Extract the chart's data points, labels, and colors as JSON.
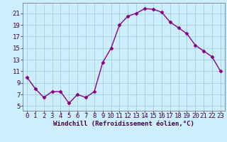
{
  "x": [
    0,
    1,
    2,
    3,
    4,
    5,
    6,
    7,
    8,
    9,
    10,
    11,
    12,
    13,
    14,
    15,
    16,
    17,
    18,
    19,
    20,
    21,
    22,
    23
  ],
  "y": [
    10.0,
    8.0,
    6.5,
    7.5,
    7.5,
    5.5,
    7.0,
    6.5,
    7.5,
    12.5,
    15.0,
    19.0,
    20.5,
    21.0,
    21.8,
    21.7,
    21.2,
    19.5,
    18.5,
    17.5,
    15.5,
    14.5,
    13.5,
    11.0
  ],
  "line_color": "#880088",
  "marker": "D",
  "marker_size": 2.5,
  "bg_color": "#cceeff",
  "grid_color": "#99cccc",
  "xlabel": "Windchill (Refroidissement éolien,°C)",
  "xlabel_fontsize": 6.5,
  "xtick_labels": [
    "0",
    "1",
    "2",
    "3",
    "4",
    "5",
    "6",
    "7",
    "8",
    "9",
    "10",
    "11",
    "12",
    "13",
    "14",
    "15",
    "16",
    "17",
    "18",
    "19",
    "20",
    "21",
    "22",
    "23"
  ],
  "ytick_values": [
    5,
    7,
    9,
    11,
    13,
    15,
    17,
    19,
    21
  ],
  "ylim": [
    4.2,
    22.8
  ],
  "xlim": [
    -0.5,
    23.5
  ],
  "tick_fontsize": 6.5,
  "linewidth": 1.0
}
